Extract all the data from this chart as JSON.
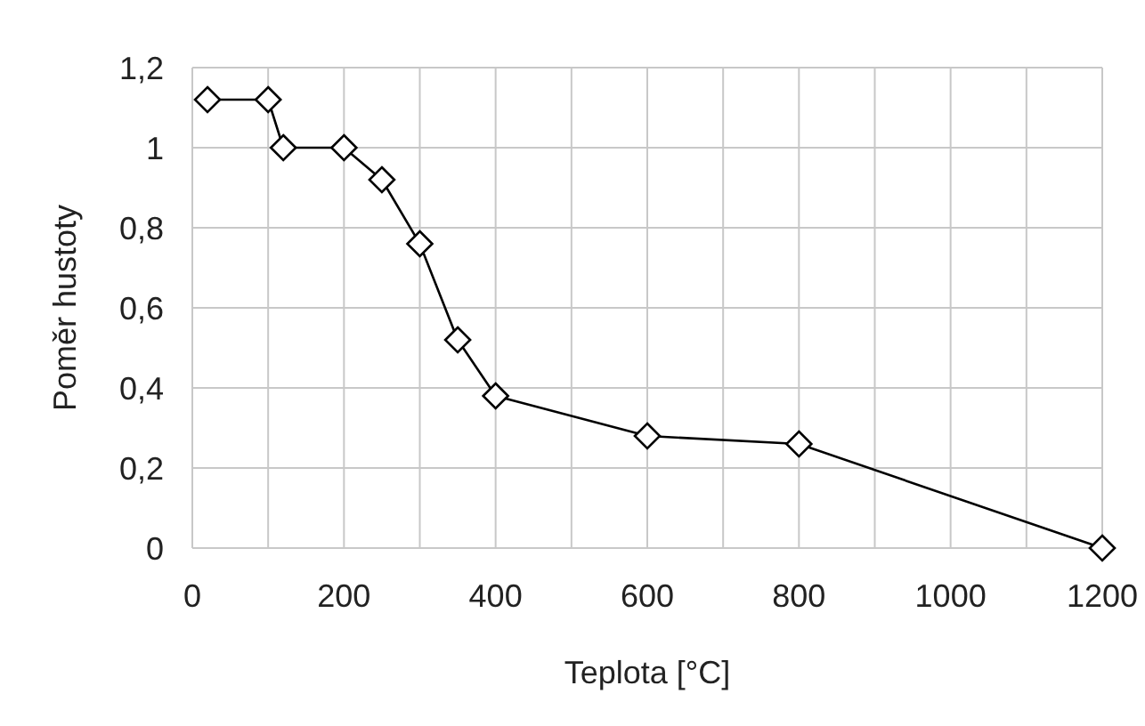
{
  "chart_data": {
    "type": "line",
    "xlabel": "Teplota [°C]",
    "ylabel": "Poměr hustoty",
    "x": [
      20,
      100,
      120,
      200,
      250,
      300,
      350,
      400,
      600,
      800,
      1200
    ],
    "series": [
      {
        "color": "#000000",
        "values": [
          1.12,
          1.12,
          1.0,
          1.0,
          0.92,
          0.76,
          0.52,
          0.38,
          0.28,
          0.26,
          0.0
        ]
      }
    ],
    "xlim": [
      0,
      1200
    ],
    "xticks": [
      0,
      {
        "value": 100,
        "label": null
      },
      200,
      {
        "value": 300,
        "label": null
      },
      400,
      {
        "value": 500,
        "label": null
      },
      600,
      {
        "value": 700,
        "label": null
      },
      800,
      {
        "value": 900,
        "label": null
      },
      1000,
      {
        "value": 1100,
        "label": null
      },
      1200
    ],
    "ylim": [
      0,
      1.2
    ],
    "yticks": [
      0,
      {
        "value": 0.2,
        "label": "0,2"
      },
      {
        "value": 0.4,
        "label": "0,4"
      },
      {
        "value": 0.6,
        "label": "0,6"
      },
      {
        "value": 0.8,
        "label": "0,8"
      },
      1,
      {
        "value": 1.2,
        "label": "1,2"
      }
    ],
    "grid": true,
    "marker": "diamond",
    "line_style": "solid"
  }
}
